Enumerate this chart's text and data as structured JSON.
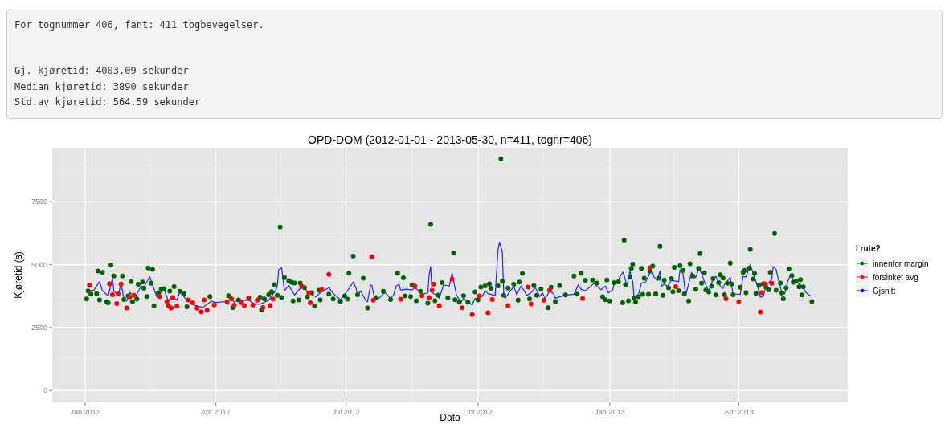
{
  "chart_data": [
    {
      "type": "other",
      "annotations": [
        "For tognummer 406, fant: 411 togbevegelser.",
        "Gj. kjøretid: 4003.09 sekunder",
        "Median kjøretid: 3890 sekunder",
        "Std.av kjøretid: 564.59 sekunder"
      ]
    },
    {
      "type": "scatter",
      "title": "OPD-DOM (2012-01-01 - 2013-05-30, n=411, tognr=406)",
      "xlabel": "Dato",
      "ylabel": "Kjøretid (s)",
      "legend_title": "I rute?",
      "legend": "right",
      "grid": true,
      "xlim": [
        "2011-12-09",
        "2013-06-16"
      ],
      "ylim": [
        -470,
        9650
      ],
      "xticks": [
        {
          "value": "2012-01-01",
          "label": "Jan 2012"
        },
        {
          "value": "2012-04-01",
          "label": "Apr 2012"
        },
        {
          "value": "2012-07-01",
          "label": "Jul 2012"
        },
        {
          "value": "2012-10-01",
          "label": "Oct 2012"
        },
        {
          "value": "2013-01-01",
          "label": "Jan 2013"
        },
        {
          "value": "2013-04-01",
          "label": "Apr 2013"
        }
      ],
      "yticks": [
        0,
        2500,
        5000,
        7500
      ],
      "series": [
        {
          "name": "innenfor margin",
          "color": "#006400",
          "x": [
            "2012-01-02",
            "2012-01-03",
            "2012-01-05",
            "2012-01-09",
            "2012-01-10",
            "2012-01-11",
            "2012-01-13",
            "2012-01-16",
            "2012-01-17",
            "2012-01-19",
            "2012-01-21",
            "2012-01-27",
            "2012-01-28",
            "2012-01-31",
            "2012-02-02",
            "2012-02-03",
            "2012-02-06",
            "2012-02-07",
            "2012-02-10",
            "2012-02-11",
            "2012-02-13",
            "2012-02-14",
            "2012-02-16",
            "2012-02-17",
            "2012-02-18",
            "2012-02-21",
            "2012-02-23",
            "2012-02-25",
            "2012-02-29",
            "2012-03-03",
            "2012-03-07",
            "2012-03-10",
            "2012-03-12",
            "2012-03-28",
            "2012-04-10",
            "2012-04-13",
            "2012-04-17",
            "2012-05-02",
            "2012-05-03",
            "2012-05-05",
            "2012-05-08",
            "2012-05-10",
            "2012-05-12",
            "2012-05-14",
            "2012-05-16",
            "2012-05-17",
            "2012-05-19",
            "2012-05-22",
            "2012-05-24",
            "2012-05-25",
            "2012-05-26",
            "2012-05-29",
            "2012-05-30",
            "2012-06-02",
            "2012-06-04",
            "2012-06-07",
            "2012-06-09",
            "2012-06-12",
            "2012-06-13",
            "2012-06-19",
            "2012-06-22",
            "2012-06-27",
            "2012-06-30",
            "2012-07-02",
            "2012-07-03",
            "2012-07-06",
            "2012-07-09",
            "2012-07-13",
            "2012-07-16",
            "2012-07-22",
            "2012-07-27",
            "2012-08-01",
            "2012-08-06",
            "2012-08-10",
            "2012-08-11",
            "2012-08-15",
            "2012-08-16",
            "2012-08-19",
            "2012-08-22",
            "2012-08-27",
            "2012-08-29",
            "2012-09-01",
            "2012-09-03",
            "2012-09-06",
            "2012-09-10",
            "2012-09-14",
            "2012-09-15",
            "2012-09-18",
            "2012-09-21",
            "2012-09-24",
            "2012-09-29",
            "2012-10-01",
            "2012-10-03",
            "2012-10-06",
            "2012-10-09",
            "2012-10-10",
            "2012-10-15",
            "2012-10-17",
            "2012-10-18",
            "2012-10-19",
            "2012-10-22",
            "2012-10-26",
            "2012-10-29",
            "2012-10-30",
            "2012-11-01",
            "2012-11-06",
            "2012-11-09",
            "2012-11-11",
            "2012-11-14",
            "2012-11-19",
            "2012-11-21",
            "2012-11-24",
            "2012-11-27",
            "2012-12-01",
            "2012-12-07",
            "2012-12-09",
            "2012-12-12",
            "2012-12-15",
            "2012-12-20",
            "2012-12-23",
            "2012-12-27",
            "2012-12-29",
            "2012-12-30",
            "2013-01-01",
            "2013-01-04",
            "2013-01-07",
            "2013-01-10",
            "2013-01-11",
            "2013-01-12",
            "2013-01-14",
            "2013-01-15",
            "2013-01-16",
            "2013-01-17",
            "2013-01-18",
            "2013-01-19",
            "2013-01-21",
            "2013-01-23",
            "2013-01-24",
            "2013-01-25",
            "2013-01-28",
            "2013-01-29",
            "2013-01-31",
            "2013-02-02",
            "2013-02-04",
            "2013-02-05",
            "2013-02-07",
            "2013-02-08",
            "2013-02-11",
            "2013-02-13",
            "2013-02-14",
            "2013-02-15",
            "2013-02-18",
            "2013-02-19",
            "2013-02-21",
            "2013-02-22",
            "2013-02-25",
            "2013-02-26",
            "2013-02-28",
            "2013-03-02",
            "2013-03-04",
            "2013-03-05",
            "2013-03-06",
            "2013-03-08",
            "2013-03-09",
            "2013-03-11",
            "2013-03-13",
            "2013-03-14",
            "2013-03-16",
            "2013-03-18",
            "2013-03-19",
            "2013-03-21",
            "2013-03-22",
            "2013-03-24",
            "2013-03-26",
            "2013-03-27",
            "2013-03-28",
            "2013-04-02",
            "2013-04-04",
            "2013-04-05",
            "2013-04-06",
            "2013-04-08",
            "2013-04-09",
            "2013-04-11",
            "2013-04-12",
            "2013-04-13",
            "2013-04-15",
            "2013-04-18",
            "2013-04-20",
            "2013-04-22",
            "2013-04-23",
            "2013-04-26",
            "2013-04-27",
            "2013-04-30",
            "2013-05-01",
            "2013-05-02",
            "2013-05-04",
            "2013-05-06",
            "2013-05-08",
            "2013-05-09",
            "2013-05-11",
            "2013-05-13",
            "2013-05-14",
            "2013-05-15",
            "2013-05-16",
            "2013-05-22"
          ],
          "marker": "circle",
          "values": [
            3640,
            3960,
            3830,
            3850,
            4750,
            3600,
            4690,
            3530,
            3490,
            4980,
            4550,
            4550,
            3620,
            3760,
            4330,
            3530,
            3640,
            4220,
            4310,
            4060,
            3740,
            4870,
            4260,
            4810,
            3360,
            3880,
            4030,
            4050,
            3950,
            4130,
            3940,
            3850,
            3330,
            3740,
            3770,
            3300,
            3600,
            3710,
            3200,
            3640,
            3810,
            3930,
            4210,
            3780,
            6500,
            3700,
            4490,
            4370,
            4300,
            3560,
            4270,
            3600,
            4270,
            4090,
            3730,
            3890,
            3350,
            3980,
            3600,
            3830,
            3640,
            3540,
            3760,
            3630,
            4660,
            5340,
            3810,
            4460,
            3280,
            3700,
            3940,
            3620,
            4660,
            4480,
            3760,
            3740,
            4200,
            3570,
            3940,
            3470,
            6600,
            3570,
            3790,
            4290,
            3690,
            5470,
            3610,
            3510,
            3770,
            3510,
            3920,
            3600,
            4110,
            4160,
            4240,
            4060,
            4160,
            9210,
            4340,
            3780,
            4070,
            4220,
            3590,
            4310,
            4650,
            3640,
            4170,
            3780,
            4030,
            3290,
            4100,
            3540,
            4170,
            3800,
            4550,
            3830,
            4660,
            4380,
            4390,
            4270,
            3730,
            3610,
            4390,
            3560,
            4290,
            4320,
            3490,
            5980,
            4210,
            3570,
            4510,
            4850,
            5020,
            3670,
            3520,
            3730,
            4850,
            3820,
            4460,
            3820,
            4740,
            4940,
            3840,
            4460,
            5730,
            3780,
            4380,
            4080,
            4450,
            3930,
            4890,
            3970,
            4960,
            4770,
            3840,
            3560,
            5040,
            4540,
            4020,
            4850,
            5440,
            4260,
            4680,
            3990,
            3920,
            4140,
            4450,
            3800,
            4290,
            4600,
            4470,
            3810,
            4260,
            5060,
            4230,
            3810,
            4100,
            4690,
            4770,
            3890,
            4860,
            5610,
            4430,
            4650,
            3860,
            4180,
            4240,
            4100,
            4000,
            4690,
            6240,
            3980,
            4270,
            3870,
            3650,
            4080,
            4840,
            4570,
            4300,
            4350,
            4120,
            4410,
            3800,
            4120,
            3540
          ]
        },
        {
          "name": "forsinket avg",
          "color": "#ff0000",
          "x": [
            "2012-01-04",
            "2012-01-18",
            "2012-01-20",
            "2012-01-23",
            "2012-01-24",
            "2012-01-26",
            "2012-01-30",
            "2012-02-01",
            "2012-02-04",
            "2012-02-22",
            "2012-02-27",
            "2012-02-28",
            "2012-03-01",
            "2012-03-02",
            "2012-03-05",
            "2012-03-13",
            "2012-03-16",
            "2012-03-19",
            "2012-03-22",
            "2012-03-24",
            "2012-03-26",
            "2012-03-31",
            "2012-04-09",
            "2012-04-12",
            "2012-04-14",
            "2012-04-19",
            "2012-04-21",
            "2012-04-24",
            "2012-04-27",
            "2012-04-30",
            "2012-05-04",
            "2012-05-09",
            "2012-05-11",
            "2012-05-31",
            "2012-06-05",
            "2012-06-06",
            "2012-06-14",
            "2012-06-19",
            "2012-07-19",
            "2012-07-20",
            "2012-08-08",
            "2012-08-18",
            "2012-08-23",
            "2012-08-28",
            "2012-08-30",
            "2012-08-31",
            "2012-09-04",
            "2012-09-13",
            "2012-09-20",
            "2012-09-27",
            "2012-10-02",
            "2012-10-08",
            "2012-10-11",
            "2012-10-22",
            "2012-11-05",
            "2012-11-07",
            "2012-11-16",
            "2012-11-20",
            "2012-12-13",
            "2013-01-29",
            "2013-02-16",
            "2013-03-23",
            "2013-04-01",
            "2013-04-16",
            "2013-04-17",
            "2013-04-19",
            "2013-04-24"
          ],
          "marker": "circle",
          "values": [
            4180,
            4240,
            3810,
            3460,
            3850,
            4230,
            3280,
            3720,
            3780,
            3740,
            3540,
            3380,
            3280,
            3700,
            3350,
            3600,
            3490,
            3270,
            3130,
            3600,
            3190,
            3400,
            3520,
            3650,
            3390,
            3500,
            3380,
            3670,
            3400,
            3590,
            3300,
            3380,
            3640,
            4140,
            3890,
            3490,
            4010,
            4610,
            5320,
            3590,
            3630,
            4150,
            3770,
            3700,
            3980,
            4230,
            3370,
            4420,
            3290,
            3020,
            3760,
            3090,
            3620,
            3370,
            4110,
            3440,
            3590,
            3980,
            3660,
            4880,
            4130,
            3650,
            3530,
            3120,
            3890,
            4240,
            4260
          ]
        },
        {
          "name": "Gjsnitt",
          "color": "#0000ff",
          "type": "line",
          "x": [
            "2012-01-03",
            "2012-01-07",
            "2012-01-11",
            "2012-01-13",
            "2012-01-17",
            "2012-01-20",
            "2012-01-21",
            "2012-01-24",
            "2012-01-26",
            "2012-01-28",
            "2012-01-30",
            "2012-02-01",
            "2012-02-05",
            "2012-02-09",
            "2012-02-11",
            "2012-02-15",
            "2012-02-20",
            "2012-02-25",
            "2012-02-28",
            "2012-03-02",
            "2012-03-05",
            "2012-03-07",
            "2012-03-11",
            "2012-03-18",
            "2012-03-23",
            "2012-03-29",
            "2012-04-01",
            "2012-04-09",
            "2012-04-12",
            "2012-04-14",
            "2012-04-17",
            "2012-04-24",
            "2012-04-28",
            "2012-05-02",
            "2012-05-08",
            "2012-05-13",
            "2012-05-14",
            "2012-05-15",
            "2012-05-17",
            "2012-05-19",
            "2012-05-22",
            "2012-05-26",
            "2012-05-31",
            "2012-06-07",
            "2012-06-10",
            "2012-06-13",
            "2012-06-19",
            "2012-06-22",
            "2012-06-27",
            "2012-07-02",
            "2012-07-06",
            "2012-07-08",
            "2012-07-09",
            "2012-07-11",
            "2012-07-15",
            "2012-07-16",
            "2012-07-18",
            "2012-07-19",
            "2012-07-21",
            "2012-07-24",
            "2012-07-28",
            "2012-08-01",
            "2012-08-03",
            "2012-08-05",
            "2012-08-07",
            "2012-08-08",
            "2012-08-12",
            "2012-08-16",
            "2012-08-18",
            "2012-08-23",
            "2012-08-27",
            "2012-08-28",
            "2012-08-29",
            "2012-08-30",
            "2012-09-02",
            "2012-09-04",
            "2012-09-07",
            "2012-09-11",
            "2012-09-13",
            "2012-09-14",
            "2012-09-16",
            "2012-09-19",
            "2012-09-21",
            "2012-09-24",
            "2012-09-27",
            "2012-09-29",
            "2012-09-30",
            "2012-10-02",
            "2012-10-04",
            "2012-10-06",
            "2012-10-08",
            "2012-10-13",
            "2012-10-15",
            "2012-10-16",
            "2012-10-18",
            "2012-10-19",
            "2012-10-20",
            "2012-10-22",
            "2012-10-26",
            "2012-10-28",
            "2012-10-31",
            "2012-11-02",
            "2012-11-04",
            "2012-11-07",
            "2012-11-10",
            "2012-11-13",
            "2012-11-15",
            "2012-11-17",
            "2012-11-20",
            "2012-11-23",
            "2012-11-24",
            "2012-11-30",
            "2012-12-07",
            "2012-12-10",
            "2012-12-12",
            "2012-12-15",
            "2012-12-21",
            "2012-12-23",
            "2012-12-26",
            "2012-12-29",
            "2012-12-31",
            "2013-01-03",
            "2013-01-04",
            "2013-01-07",
            "2013-01-10",
            "2013-01-11",
            "2013-01-13",
            "2013-01-15",
            "2013-01-17",
            "2013-01-18",
            "2013-01-21",
            "2013-01-23",
            "2013-01-26",
            "2013-01-28",
            "2013-01-30",
            "2013-02-01",
            "2013-02-03",
            "2013-02-05",
            "2013-02-06",
            "2013-02-08",
            "2013-02-10",
            "2013-02-13",
            "2013-02-18",
            "2013-02-19",
            "2013-02-21",
            "2013-02-23",
            "2013-02-25",
            "2013-02-27",
            "2013-03-02",
            "2013-03-04",
            "2013-03-06",
            "2013-03-08",
            "2013-03-11",
            "2013-03-14",
            "2013-03-16",
            "2013-03-19",
            "2013-03-21",
            "2013-03-22",
            "2013-03-26",
            "2013-03-28",
            "2013-04-02",
            "2013-04-04",
            "2013-04-06",
            "2013-04-09",
            "2013-04-12",
            "2013-04-14",
            "2013-04-16",
            "2013-04-18",
            "2013-04-20",
            "2013-04-24",
            "2013-04-25",
            "2013-04-27",
            "2013-04-29",
            "2013-05-01",
            "2013-05-03",
            "2013-05-05",
            "2013-05-07",
            "2013-05-09",
            "2013-05-12",
            "2013-05-14",
            "2013-05-16",
            "2013-05-18",
            "2013-05-21"
          ],
          "marker": "none",
          "values": [
            3960,
            3990,
            4330,
            3970,
            3760,
            4440,
            3950,
            3780,
            4260,
            3650,
            3560,
            3900,
            3720,
            4150,
            4110,
            4520,
            3720,
            4030,
            3560,
            3730,
            3590,
            3930,
            3650,
            3380,
            3300,
            3550,
            3500,
            3540,
            3670,
            3510,
            3590,
            3590,
            3440,
            3430,
            3590,
            3990,
            4150,
            4800,
            4880,
            3970,
            4170,
            3800,
            4120,
            3820,
            3720,
            3890,
            4090,
            3860,
            3610,
            3960,
            4310,
            4060,
            3760,
            3960,
            3560,
            3530,
            4180,
            4180,
            3620,
            3670,
            3900,
            3670,
            3780,
            4150,
            4220,
            3990,
            4030,
            3990,
            4100,
            3830,
            3880,
            4630,
            4920,
            3880,
            3800,
            3670,
            4200,
            4150,
            4660,
            4360,
            3800,
            3510,
            3670,
            3510,
            3400,
            3670,
            3640,
            3830,
            3740,
            3970,
            3850,
            3780,
            5590,
            5900,
            5530,
            3830,
            3670,
            3830,
            4150,
            3810,
            4150,
            3990,
            3780,
            3880,
            4100,
            3740,
            3880,
            3650,
            3960,
            3830,
            3670,
            3780,
            3830,
            4200,
            4020,
            3970,
            4260,
            4150,
            4010,
            4150,
            3880,
            3990,
            4260,
            4390,
            4710,
            4570,
            4130,
            4750,
            4320,
            3680,
            3810,
            4270,
            4320,
            4540,
            4830,
            4490,
            4380,
            4750,
            4130,
            4240,
            4130,
            4380,
            4320,
            4800,
            4650,
            3790,
            4240,
            4690,
            4490,
            4860,
            4650,
            4320,
            3950,
            4430,
            4540,
            4160,
            4060,
            4220,
            4490,
            3840,
            3820,
            4540,
            4510,
            5010,
            4490,
            4160,
            3710,
            3730,
            4160,
            4430,
            4920,
            4810,
            4320,
            3890,
            3840,
            4320,
            4590,
            4380,
            4270,
            4220,
            4060,
            3890,
            3760
          ]
        }
      ]
    }
  ]
}
